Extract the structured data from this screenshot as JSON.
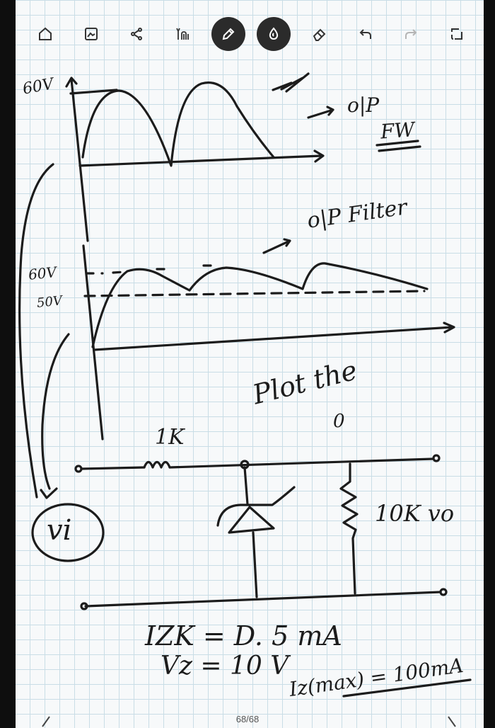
{
  "toolbar": {
    "tools": [
      {
        "name": "home-icon"
      },
      {
        "name": "image-icon"
      },
      {
        "name": "share-icon"
      },
      {
        "name": "text-recognition-icon"
      },
      {
        "name": "pen-icon",
        "active": true
      },
      {
        "name": "highlighter-icon",
        "active": true
      },
      {
        "name": "eraser-icon"
      },
      {
        "name": "undo-icon"
      },
      {
        "name": "redo-icon"
      },
      {
        "name": "fit-screen-icon"
      }
    ]
  },
  "note": {
    "label_60v_top": "60V",
    "label_op_fw": "o|P",
    "label_fw": "FW",
    "label_op_filter": "o|P Filter",
    "label_60v_mid": "60V",
    "label_50v": "50V",
    "label_plot_the": "Plot the",
    "label_plot_sub": "0",
    "label_1k": "1K",
    "label_10k_vo": "10K  vo",
    "label_vi": "vi",
    "label_izk": "IZK = D. 5 mA",
    "label_vz": "Vz  =  10 V",
    "label_izmax": "Iz(max) = 100mA"
  },
  "colors": {
    "ink": "#1c1c1c",
    "grid": "#c9dde6",
    "active_tool": "#2b2b2b"
  },
  "pagination": {
    "label": "68/68"
  }
}
